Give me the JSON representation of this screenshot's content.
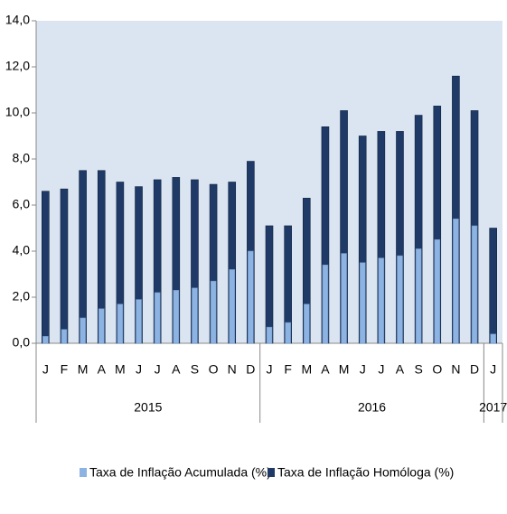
{
  "chart_data": {
    "type": "bar",
    "categories": [
      "J",
      "F",
      "M",
      "A",
      "M",
      "J",
      "J",
      "A",
      "S",
      "O",
      "N",
      "D",
      "J",
      "F",
      "M",
      "A",
      "M",
      "J",
      "J",
      "A",
      "S",
      "O",
      "N",
      "D",
      "J"
    ],
    "years": [
      "2015",
      "2016",
      "2017"
    ],
    "series": [
      {
        "name": "Taxa de Inflação Homóloga (%)",
        "color": "#1f3a66",
        "values": [
          6.6,
          6.7,
          7.5,
          7.5,
          7.0,
          6.8,
          7.1,
          7.2,
          7.1,
          6.9,
          7.0,
          7.9,
          5.1,
          5.1,
          6.3,
          9.4,
          10.1,
          9.0,
          9.2,
          9.2,
          9.9,
          10.3,
          11.6,
          10.1,
          5.0
        ]
      },
      {
        "name": "Taxa de Inflação Acumulada (%)",
        "color": "#8db3e2",
        "values": [
          0.3,
          0.6,
          1.1,
          1.5,
          1.7,
          1.9,
          2.2,
          2.3,
          2.4,
          2.7,
          3.2,
          4.0,
          0.7,
          0.9,
          1.7,
          3.4,
          3.9,
          3.5,
          3.7,
          3.8,
          4.1,
          4.5,
          5.4,
          5.1,
          0.4
        ]
      }
    ],
    "ylim": [
      0,
      14
    ],
    "yticks": [
      {
        "value": 0,
        "label": "0,0"
      },
      {
        "value": 2,
        "label": "2,0"
      },
      {
        "value": 4,
        "label": "4,0"
      },
      {
        "value": 6,
        "label": "6,0"
      },
      {
        "value": 8,
        "label": "8,0"
      },
      {
        "value": 10,
        "label": "10,0"
      },
      {
        "value": 12,
        "label": "12,0"
      },
      {
        "value": 14,
        "label": "14,0"
      }
    ],
    "background": "#dbe5f1"
  }
}
